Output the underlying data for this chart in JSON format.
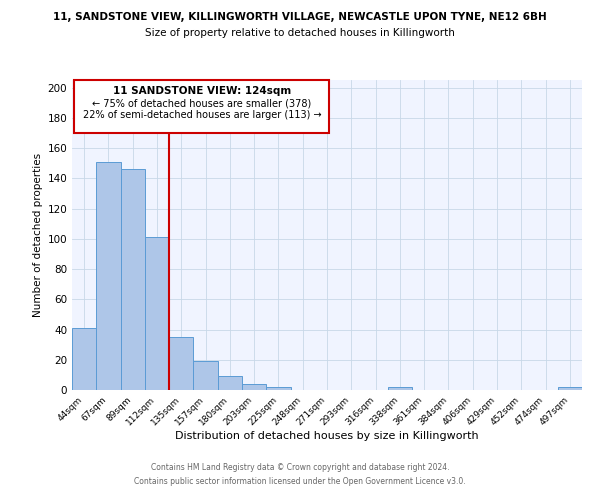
{
  "title_line1": "11, SANDSTONE VIEW, KILLINGWORTH VILLAGE, NEWCASTLE UPON TYNE, NE12 6BH",
  "title_line2": "Size of property relative to detached houses in Killingworth",
  "xlabel": "Distribution of detached houses by size in Killingworth",
  "ylabel": "Number of detached properties",
  "bar_labels": [
    "44sqm",
    "67sqm",
    "89sqm",
    "112sqm",
    "135sqm",
    "157sqm",
    "180sqm",
    "203sqm",
    "225sqm",
    "248sqm",
    "271sqm",
    "293sqm",
    "316sqm",
    "338sqm",
    "361sqm",
    "384sqm",
    "406sqm",
    "429sqm",
    "452sqm",
    "474sqm",
    "497sqm"
  ],
  "bar_values": [
    41,
    151,
    146,
    101,
    35,
    19,
    9,
    4,
    2,
    0,
    0,
    0,
    0,
    2,
    0,
    0,
    0,
    0,
    0,
    0,
    2
  ],
  "bar_color": "#aec6e8",
  "bar_edge_color": "#5b9bd5",
  "vline_x": 3.5,
  "vline_color": "#cc0000",
  "annotation_title": "11 SANDSTONE VIEW: 124sqm",
  "annotation_line2": "← 75% of detached houses are smaller (378)",
  "annotation_line3": "22% of semi-detached houses are larger (113) →",
  "annotation_box_color": "#cc0000",
  "ylim": [
    0,
    205
  ],
  "yticks": [
    0,
    20,
    40,
    60,
    80,
    100,
    120,
    140,
    160,
    180,
    200
  ],
  "grid_color": "#c8d8e8",
  "bg_color": "#f0f4ff",
  "footer_line1": "Contains HM Land Registry data © Crown copyright and database right 2024.",
  "footer_line2": "Contains public sector information licensed under the Open Government Licence v3.0."
}
